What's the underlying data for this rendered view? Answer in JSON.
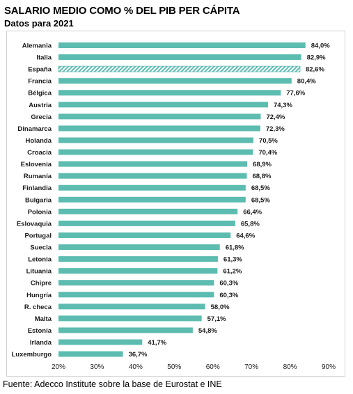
{
  "chart_data": {
    "type": "bar",
    "orientation": "horizontal",
    "title": "SALARIO MEDIO COMO % DEL PIB PER CÁPITA",
    "subtitle": "Datos para 2021",
    "source": "Fuente: Adecco Institute sobre la base de Eurostat e INE",
    "categories": [
      "Alemania",
      "Italia",
      "España",
      "Francia",
      "Bélgica",
      "Austria",
      "Grecia",
      "Dinamarca",
      "Holanda",
      "Croacia",
      "Eslovenia",
      "Rumanía",
      "Finlandia",
      "Bulgaria",
      "Polonia",
      "Eslovaquia",
      "Portugal",
      "Suecia",
      "Letonia",
      "Lituania",
      "Chipre",
      "Hungría",
      "R. checa",
      "Malta",
      "Estonia",
      "Irlanda",
      "Luxemburgo"
    ],
    "values": [
      84.0,
      82.9,
      82.6,
      80.4,
      77.6,
      74.3,
      72.4,
      72.3,
      70.5,
      70.4,
      68.9,
      68.8,
      68.5,
      68.5,
      66.4,
      65.8,
      64.6,
      61.8,
      61.3,
      61.2,
      60.3,
      60.3,
      58.0,
      57.1,
      54.8,
      41.7,
      36.7
    ],
    "value_labels": [
      "84,0%",
      "82,9%",
      "82,6%",
      "80,4%",
      "77,6%",
      "74,3%",
      "72,4%",
      "72,3%",
      "70,5%",
      "70,4%",
      "68,9%",
      "68,8%",
      "68,5%",
      "68,5%",
      "66,4%",
      "65,8%",
      "64,6%",
      "61,8%",
      "61,3%",
      "61,2%",
      "60,3%",
      "60,3%",
      "58,0%",
      "57,1%",
      "54,8%",
      "41,7%",
      "36,7%"
    ],
    "highlight": "España",
    "xlim": [
      20,
      90
    ],
    "xticks": [
      20,
      30,
      40,
      50,
      60,
      70,
      80,
      90
    ],
    "xtick_labels": [
      "20%",
      "30%",
      "40%",
      "50%",
      "60%",
      "70%",
      "80%",
      "90%"
    ],
    "bar_color": "#5cbcb0",
    "grid": false,
    "legend": "none"
  }
}
